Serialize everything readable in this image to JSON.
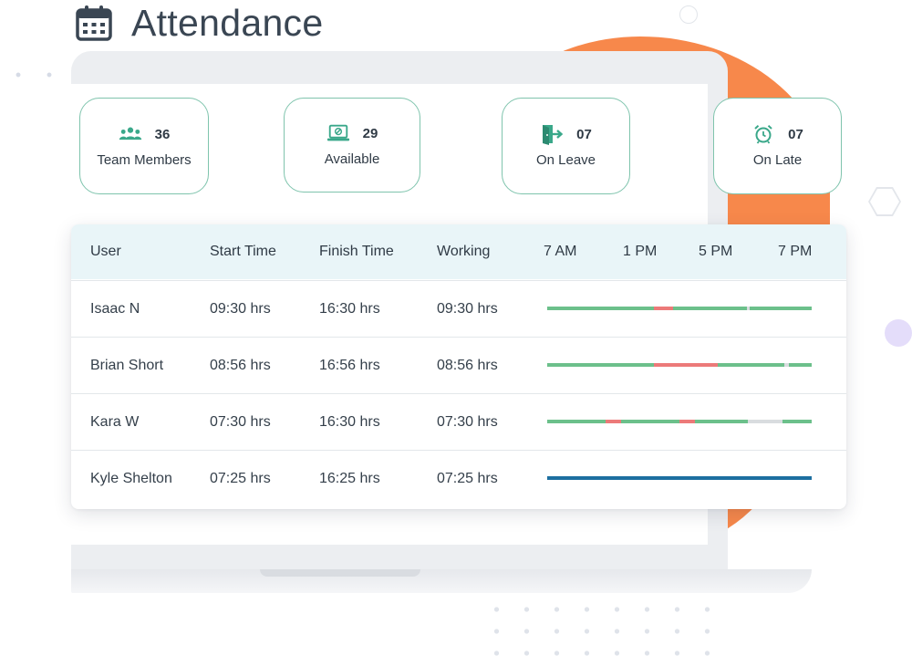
{
  "header": {
    "title": "Attendance",
    "icon": "calendar-icon"
  },
  "stats": [
    {
      "value": "36",
      "label": "Team Members",
      "icon": "team-icon"
    },
    {
      "value": "29",
      "label": "Available",
      "icon": "laptop-check-icon"
    },
    {
      "value": "07",
      "label": "On Leave",
      "icon": "exit-door-icon"
    },
    {
      "value": "07",
      "label": "On Late",
      "icon": "alarm-clock-icon"
    }
  ],
  "table": {
    "headers": {
      "user": "User",
      "start": "Start Time",
      "finish": "Finish Time",
      "working": "Working",
      "t1": "7 AM",
      "t2": "1 PM",
      "t3": "5 PM",
      "t4": "7 PM"
    },
    "rows": [
      {
        "user": "Isaac N",
        "start": "09:30 hrs",
        "finish": "16:30 hrs",
        "working": "09:30 hrs",
        "timeline": [
          {
            "from": 0,
            "to": 0.405,
            "status": "present"
          },
          {
            "from": 0.405,
            "to": 0.475,
            "status": "late"
          },
          {
            "from": 0.475,
            "to": 0.755,
            "status": "present"
          },
          {
            "from": 0.755,
            "to": 0.765,
            "status": "idle"
          },
          {
            "from": 0.765,
            "to": 1,
            "status": "present"
          }
        ]
      },
      {
        "user": "Brian Short",
        "start": "08:56 hrs",
        "finish": "16:56 hrs",
        "working": "08:56 hrs",
        "timeline": [
          {
            "from": 0,
            "to": 0.405,
            "status": "present"
          },
          {
            "from": 0.405,
            "to": 0.645,
            "status": "late"
          },
          {
            "from": 0.645,
            "to": 0.895,
            "status": "present"
          },
          {
            "from": 0.895,
            "to": 0.915,
            "status": "idle"
          },
          {
            "from": 0.915,
            "to": 1,
            "status": "present"
          }
        ]
      },
      {
        "user": "Kara W",
        "start": "07:30 hrs",
        "finish": "16:30 hrs",
        "working": "07:30 hrs",
        "timeline": [
          {
            "from": 0,
            "to": 0.22,
            "status": "present"
          },
          {
            "from": 0.22,
            "to": 0.28,
            "status": "late"
          },
          {
            "from": 0.28,
            "to": 0.5,
            "status": "present"
          },
          {
            "from": 0.5,
            "to": 0.56,
            "status": "late"
          },
          {
            "from": 0.56,
            "to": 0.76,
            "status": "present"
          },
          {
            "from": 0.76,
            "to": 0.89,
            "status": "idle"
          },
          {
            "from": 0.89,
            "to": 1,
            "status": "present"
          }
        ]
      },
      {
        "user": "Kyle Shelton",
        "start": "07:25 hrs",
        "finish": "16:25 hrs",
        "working": "07:25 hrs",
        "timeline": [
          {
            "from": 0,
            "to": 1,
            "status": "leave"
          }
        ]
      }
    ]
  },
  "colors": {
    "accent": "#3aa88a",
    "present": "#6cc08b",
    "late": "#ec7a79",
    "idle": "#d9dcdf",
    "leave": "#1d6fa0",
    "orange": "#f7884b",
    "border": "#7fc4ad"
  }
}
